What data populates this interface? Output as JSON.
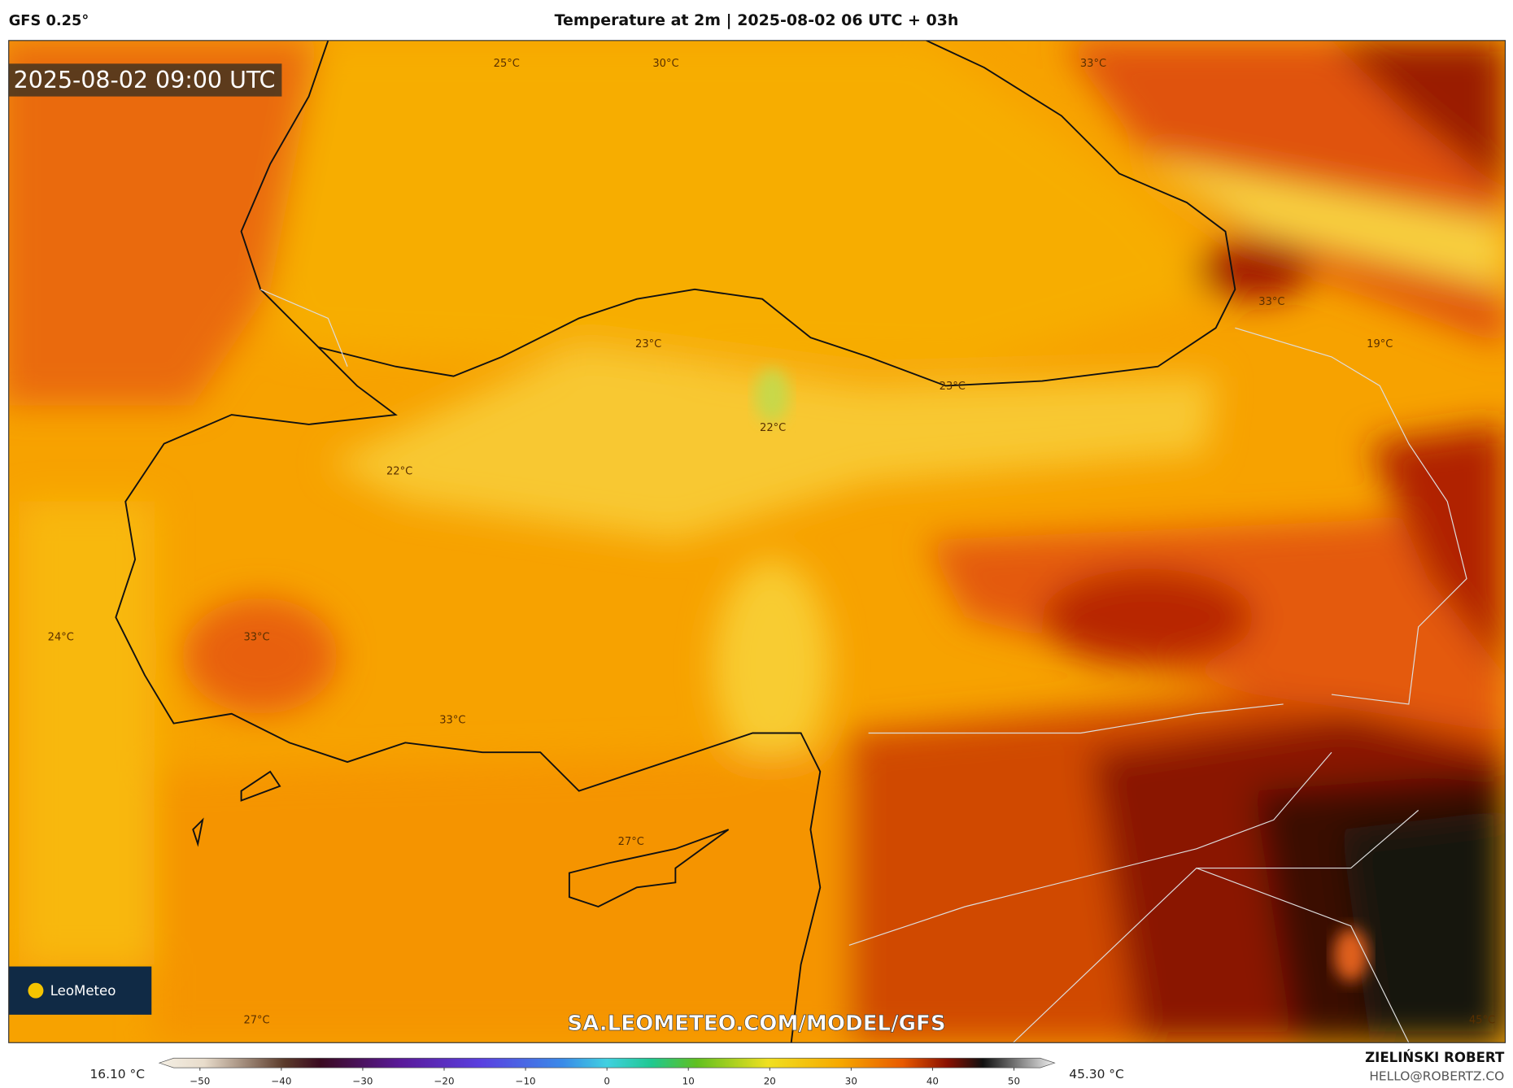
{
  "header": {
    "model": "GFS 0.25°",
    "title": "Temperature at 2m | 2025-08-02 06 UTC + 03h"
  },
  "map": {
    "timestamp": "2025-08-02 09:00 UTC",
    "labels": [
      "25°C",
      "30°C",
      "33°C",
      "23°C",
      "33°C",
      "19°C",
      "23°C",
      "22°C",
      "22°C",
      "24°C",
      "33°C",
      "33°C",
      "27°C",
      "27°C",
      "45°C"
    ],
    "watermark": "SA.LEOMETEO.COM/MODEL/GFS",
    "logo": "LeoMeteo"
  },
  "colorbar": {
    "min_label": "16.10 °C",
    "max_label": "45.30 °C",
    "lim": [
      -55,
      55
    ],
    "ticks": [
      {
        "value": -50,
        "label": "−50"
      },
      {
        "value": -40,
        "label": "−40"
      },
      {
        "value": -30,
        "label": "−30"
      },
      {
        "value": -20,
        "label": "−20"
      },
      {
        "value": -10,
        "label": "−10"
      },
      0,
      10,
      20,
      30,
      40,
      50
    ]
  },
  "footer": {
    "author": "ZIELIŃSKI ROBERT",
    "email": "HELLO@ROBERTZ.CO"
  }
}
